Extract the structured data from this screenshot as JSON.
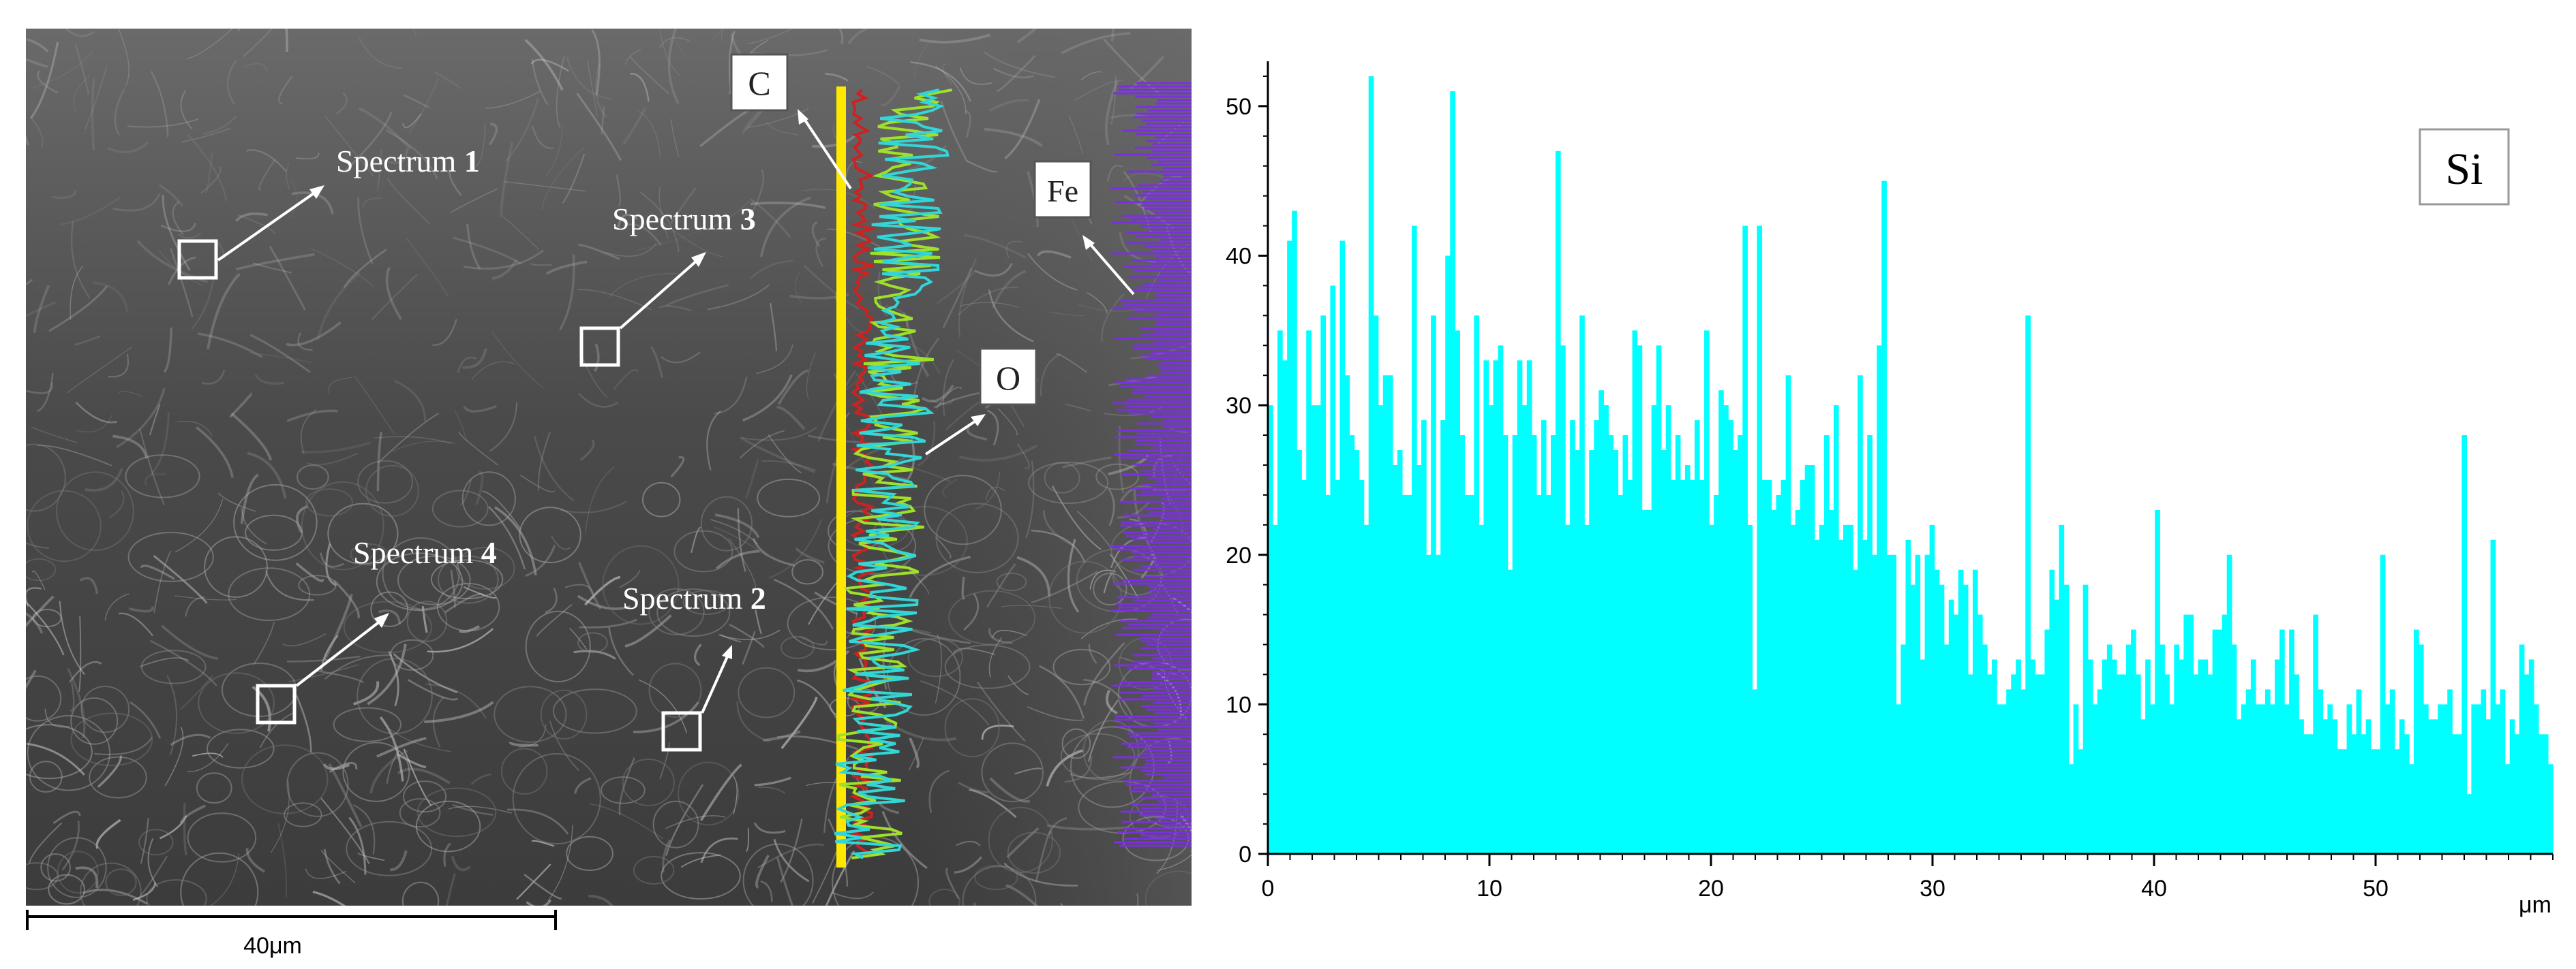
{
  "sem_image": {
    "spectrum_labels": [
      {
        "id": "s1",
        "prefix": "Spectrum ",
        "num": "1"
      },
      {
        "id": "s3",
        "prefix": "Spectrum ",
        "num": "3"
      },
      {
        "id": "s4",
        "prefix": "Spectrum ",
        "num": "4"
      },
      {
        "id": "s2",
        "prefix": "Spectrum ",
        "num": "2"
      }
    ],
    "element_labels": {
      "c": "C",
      "fe": "Fe",
      "o": "O"
    },
    "scale_bar": "40μm",
    "colors": {
      "line_scan": "#FFE800",
      "c_trace": "#CC2222",
      "o_trace_cyan": "#33D6D6",
      "o_trace_green": "#9EE02A",
      "fe_trace": "#7B2FE0"
    }
  },
  "chart_data": {
    "type": "bar",
    "title": "Si",
    "xlabel": "μm",
    "ylabel": "",
    "xlim": [
      0,
      58
    ],
    "ylim": [
      0,
      53
    ],
    "x_ticks": [
      "0",
      "10",
      "20",
      "30",
      "40",
      "50"
    ],
    "y_ticks": [
      "0",
      "10",
      "20",
      "30",
      "40",
      "50"
    ],
    "color": "#00FFFF",
    "values": [
      30,
      22,
      35,
      33,
      41,
      43,
      27,
      25,
      35,
      30,
      30,
      36,
      24,
      38,
      25,
      41,
      32,
      28,
      27,
      25,
      22,
      52,
      36,
      30,
      32,
      32,
      26,
      27,
      24,
      24,
      42,
      26,
      29,
      20,
      36,
      20,
      29,
      40,
      51,
      35,
      28,
      24,
      24,
      36,
      22,
      33,
      30,
      33,
      34,
      28,
      19,
      28,
      33,
      30,
      33,
      28,
      24,
      29,
      24,
      28,
      47,
      34,
      22,
      29,
      27,
      36,
      22,
      27,
      29,
      31,
      30,
      28,
      27,
      24,
      28,
      25,
      35,
      34,
      23,
      23,
      30,
      34,
      27,
      30,
      25,
      28,
      25,
      26,
      25,
      29,
      25,
      35,
      22,
      24,
      31,
      30,
      29,
      27,
      28,
      42,
      22,
      11,
      42,
      25,
      25,
      23,
      24,
      25,
      32,
      22,
      23,
      25,
      26,
      26,
      21,
      22,
      28,
      23,
      30,
      21,
      22,
      22,
      19,
      32,
      21,
      28,
      20,
      34,
      45,
      20,
      20,
      10,
      14,
      21,
      18,
      20,
      13,
      20,
      22,
      19,
      18,
      14,
      17,
      16,
      19,
      18,
      12,
      19,
      16,
      14,
      12,
      13,
      10,
      10,
      11,
      12,
      13,
      11,
      36,
      13,
      12,
      12,
      15,
      19,
      17,
      22,
      18,
      6,
      10,
      7,
      18,
      13,
      10,
      11,
      13,
      14,
      13,
      12,
      12,
      14,
      15,
      12,
      9,
      13,
      10,
      23,
      14,
      12,
      10,
      14,
      13,
      16,
      16,
      12,
      13,
      13,
      12,
      15,
      15,
      16,
      20,
      14,
      9,
      10,
      11,
      13,
      10,
      10,
      11,
      10,
      13,
      15,
      10,
      15,
      12,
      9,
      8,
      8,
      16,
      11,
      9,
      10,
      9,
      7,
      7,
      10,
      8,
      11,
      8,
      9,
      7,
      7,
      20,
      10,
      11,
      7,
      9,
      8,
      6,
      15,
      14,
      10,
      9,
      9,
      10,
      10,
      11,
      8,
      8,
      28,
      4,
      10,
      10,
      11,
      9,
      21,
      10,
      11,
      6,
      9,
      8,
      14,
      12,
      13,
      10,
      8,
      8,
      6
    ]
  }
}
